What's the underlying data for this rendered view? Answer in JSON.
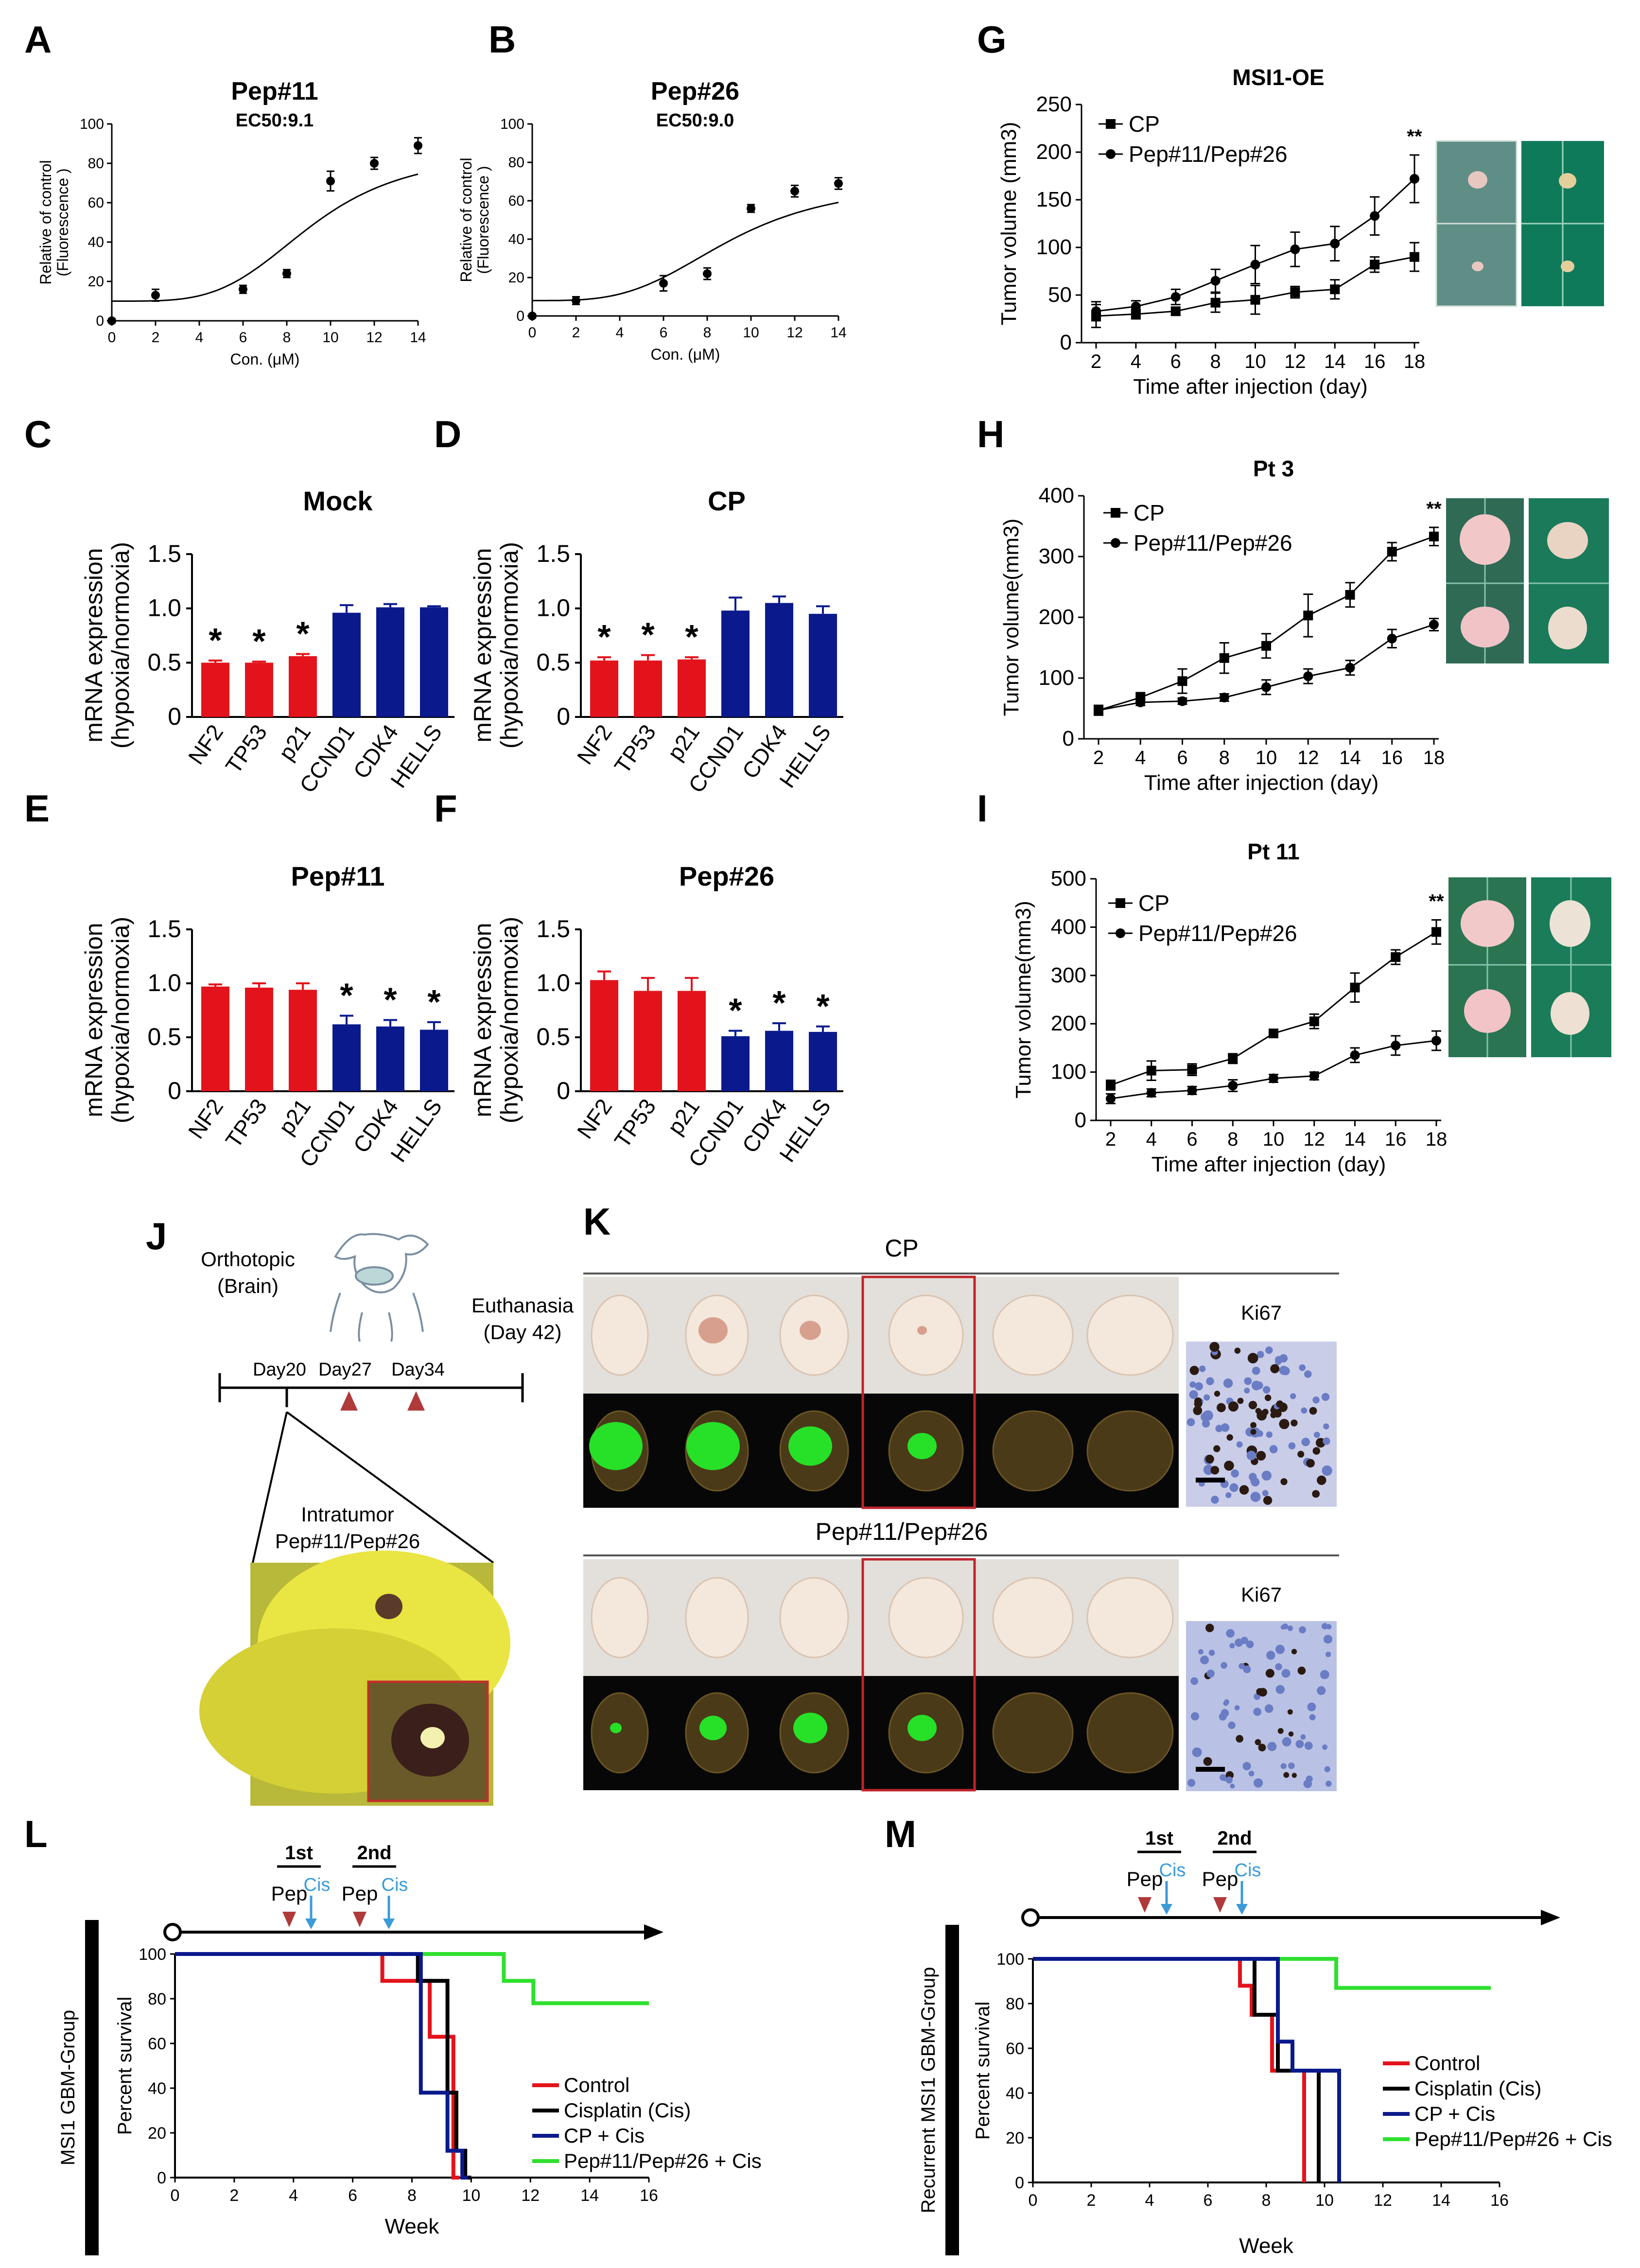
{
  "colors": {
    "red": "#e3131b",
    "blue": "#0a1a8c",
    "black": "#000000",
    "green": "#2fe02f",
    "lightblue": "#3b9bd8",
    "darkred": "#b03a3a"
  },
  "panels": {
    "A": "A",
    "B": "B",
    "C": "C",
    "D": "D",
    "E": "E",
    "F": "F",
    "G": "G",
    "H": "H",
    "I": "I",
    "J": "J",
    "K": "K",
    "L": "L",
    "M": "M"
  },
  "chart_data": [
    {
      "id": "A",
      "type": "scatter",
      "title": "Pep#11",
      "subtitle": "EC50:9.1",
      "xlabel": "Con. (μM)",
      "ylabel": [
        "Relative of control",
        "(Fluorescence )"
      ],
      "xlim": [
        0,
        14
      ],
      "ylim": [
        0,
        100
      ],
      "xticks": [
        0,
        2,
        4,
        6,
        8,
        10,
        12,
        14
      ],
      "yticks": [
        0,
        20,
        40,
        60,
        80,
        100
      ],
      "x": [
        0,
        2,
        6,
        8,
        10,
        12,
        14
      ],
      "y": [
        0,
        13,
        16,
        24,
        71,
        80,
        89
      ],
      "err": [
        1,
        3,
        2,
        2,
        5,
        3,
        4
      ],
      "fit": {
        "bottom": 10,
        "top": 86,
        "ec50": 9.1,
        "hill": 4
      }
    },
    {
      "id": "B",
      "type": "scatter",
      "title": "Pep#26",
      "subtitle": "EC50:9.0",
      "xlabel": "Con. (μM)",
      "ylabel": [
        "Relative of control",
        "(Fluorescence )"
      ],
      "xlim": [
        0,
        14
      ],
      "ylim": [
        0,
        100
      ],
      "xticks": [
        0,
        2,
        4,
        6,
        8,
        10,
        12,
        14
      ],
      "yticks": [
        0,
        20,
        40,
        60,
        80,
        100
      ],
      "x": [
        0,
        2,
        6,
        8,
        10,
        12,
        14
      ],
      "y": [
        0,
        8,
        17,
        22,
        56,
        65,
        69
      ],
      "err": [
        1,
        2,
        4,
        3,
        2,
        3,
        3
      ],
      "fit": {
        "bottom": 8,
        "top": 70,
        "ec50": 9.0,
        "hill": 3.5
      }
    },
    {
      "id": "C",
      "type": "bar",
      "title": "Mock",
      "ylabel": [
        "mRNA expression",
        "(hypoxia/normoxia)"
      ],
      "ylim": [
        0,
        1.5
      ],
      "yticks": [
        "0",
        "0.5",
        "1.0",
        "1.5"
      ],
      "categories": [
        "NF2",
        "TP53",
        "p21",
        "CCND1",
        "CDK4",
        "HELLS"
      ],
      "values": [
        0.5,
        0.5,
        0.56,
        0.96,
        1.01,
        1.01
      ],
      "err": [
        0.02,
        0.01,
        0.02,
        0.07,
        0.03,
        0.01
      ],
      "colors": [
        "red",
        "red",
        "red",
        "blue",
        "blue",
        "blue"
      ],
      "stars": [
        true,
        true,
        true,
        false,
        false,
        false
      ]
    },
    {
      "id": "D",
      "type": "bar",
      "title": "CP",
      "ylabel": [
        "mRNA expression",
        "(hypoxia/normoxia)"
      ],
      "ylim": [
        0,
        1.5
      ],
      "yticks": [
        "0",
        "0.5",
        "1.0",
        "1.5"
      ],
      "categories": [
        "NF2",
        "TP53",
        "p21",
        "CCND1",
        "CDK4",
        "HELLS"
      ],
      "values": [
        0.52,
        0.52,
        0.53,
        0.98,
        1.05,
        0.95
      ],
      "err": [
        0.03,
        0.05,
        0.02,
        0.12,
        0.06,
        0.07
      ],
      "colors": [
        "red",
        "red",
        "red",
        "blue",
        "blue",
        "blue"
      ],
      "stars": [
        true,
        true,
        true,
        false,
        false,
        false
      ]
    },
    {
      "id": "E",
      "type": "bar",
      "title": "Pep#11",
      "ylabel": [
        "mRNA expression",
        "(hypoxia/normoxia)"
      ],
      "ylim": [
        0,
        1.5
      ],
      "yticks": [
        "0",
        "0.5",
        "1.0",
        "1.5"
      ],
      "categories": [
        "NF2",
        "TP53",
        "p21",
        "CCND1",
        "CDK4",
        "HELLS"
      ],
      "values": [
        0.97,
        0.96,
        0.94,
        0.62,
        0.6,
        0.57
      ],
      "err": [
        0.02,
        0.04,
        0.06,
        0.08,
        0.06,
        0.07
      ],
      "colors": [
        "red",
        "red",
        "red",
        "blue",
        "blue",
        "blue"
      ],
      "stars": [
        false,
        false,
        false,
        true,
        true,
        true
      ]
    },
    {
      "id": "F",
      "type": "bar",
      "title": "Pep#26",
      "ylabel": [
        "mRNA expression",
        "(hypoxia/normoxia)"
      ],
      "ylim": [
        0,
        1.5
      ],
      "yticks": [
        "0",
        "0.5",
        "1.0",
        "1.5"
      ],
      "categories": [
        "NF2",
        "TP53",
        "p21",
        "CCND1",
        "CDK4",
        "HELLS"
      ],
      "values": [
        1.03,
        0.93,
        0.93,
        0.51,
        0.56,
        0.55
      ],
      "err": [
        0.08,
        0.12,
        0.12,
        0.05,
        0.07,
        0.05
      ],
      "colors": [
        "red",
        "red",
        "red",
        "blue",
        "blue",
        "blue"
      ],
      "stars": [
        false,
        false,
        false,
        true,
        true,
        true
      ]
    },
    {
      "id": "G",
      "type": "line",
      "title": "MSI1-OE",
      "xlabel": "Time after injection (day)",
      "ylabel": "Tumor volume (mm3)",
      "xlim": [
        2,
        18
      ],
      "ylim": [
        0,
        250
      ],
      "xticks": [
        2,
        4,
        6,
        8,
        10,
        12,
        14,
        16,
        18
      ],
      "yticks": [
        0,
        50,
        100,
        150,
        200,
        250
      ],
      "sig": "**",
      "series": [
        {
          "name": "CP",
          "marker": "square",
          "x": [
            2,
            4,
            6,
            8,
            10,
            12,
            14,
            16,
            18
          ],
          "y": [
            28,
            30,
            33,
            42,
            45,
            53,
            56,
            82,
            90
          ],
          "err": [
            12,
            5,
            4,
            10,
            15,
            6,
            10,
            8,
            15
          ]
        },
        {
          "name": "Pep#11/Pep#26",
          "marker": "circle",
          "x": [
            2,
            4,
            6,
            8,
            10,
            12,
            14,
            16,
            18
          ],
          "y": [
            33,
            38,
            48,
            65,
            82,
            98,
            104,
            133,
            172
          ],
          "err": [
            10,
            6,
            8,
            12,
            20,
            18,
            18,
            20,
            25
          ]
        }
      ]
    },
    {
      "id": "H",
      "type": "line",
      "title": "Pt 3",
      "xlabel": "Time after injection (day)",
      "ylabel": "Tumor volume(mm3)",
      "xlim": [
        2,
        18
      ],
      "ylim": [
        0,
        400
      ],
      "xticks": [
        2,
        4,
        6,
        8,
        10,
        12,
        14,
        16,
        18
      ],
      "yticks": [
        0,
        100,
        200,
        300,
        400
      ],
      "sig": "**",
      "series": [
        {
          "name": "CP",
          "marker": "square",
          "x": [
            2,
            4,
            6,
            8,
            10,
            12,
            14,
            16,
            18
          ],
          "y": [
            47,
            68,
            95,
            133,
            153,
            203,
            237,
            308,
            333
          ],
          "err": [
            8,
            8,
            20,
            25,
            20,
            35,
            20,
            15,
            15
          ]
        },
        {
          "name": "Pep#11/Pep#26",
          "marker": "circle",
          "x": [
            2,
            4,
            6,
            8,
            10,
            12,
            14,
            16,
            18
          ],
          "y": [
            47,
            60,
            62,
            68,
            85,
            103,
            117,
            165,
            188
          ],
          "err": [
            8,
            5,
            5,
            6,
            12,
            12,
            12,
            15,
            10
          ]
        }
      ]
    },
    {
      "id": "I",
      "type": "line",
      "title": "Pt 11",
      "xlabel": "Time after injection (day)",
      "ylabel": "Tumor volume(mm3)",
      "xlim": [
        2,
        18
      ],
      "ylim": [
        0,
        500
      ],
      "xticks": [
        2,
        4,
        6,
        8,
        10,
        12,
        14,
        16,
        18
      ],
      "yticks": [
        0,
        100,
        200,
        300,
        400,
        500
      ],
      "sig": "**",
      "series": [
        {
          "name": "CP",
          "marker": "square",
          "x": [
            2,
            4,
            6,
            8,
            10,
            12,
            14,
            16,
            18
          ],
          "y": [
            73,
            103,
            105,
            128,
            180,
            205,
            275,
            338,
            390
          ],
          "err": [
            10,
            20,
            12,
            10,
            8,
            15,
            30,
            15,
            25
          ]
        },
        {
          "name": "Pep#11/Pep#26",
          "marker": "circle",
          "x": [
            2,
            4,
            6,
            8,
            10,
            12,
            14,
            16,
            18
          ],
          "y": [
            45,
            57,
            62,
            72,
            87,
            92,
            135,
            155,
            165
          ],
          "err": [
            10,
            8,
            8,
            12,
            8,
            8,
            15,
            20,
            20
          ]
        }
      ]
    },
    {
      "id": "L",
      "type": "line",
      "subtype": "survival",
      "xlabel": "Week",
      "ylabel": "Percent survival",
      "group": "MSI1 GBM-Group",
      "xlim": [
        0,
        16
      ],
      "ylim": [
        0,
        100
      ],
      "xticks": [
        0,
        2,
        4,
        6,
        8,
        10,
        12,
        14,
        16
      ],
      "yticks": [
        0,
        20,
        40,
        60,
        80,
        100
      ],
      "series": [
        {
          "name": "Control",
          "color": "red",
          "steps": [
            [
              0,
              100
            ],
            [
              7,
              100
            ],
            [
              7,
              88
            ],
            [
              8.6,
              88
            ],
            [
              8.6,
              63
            ],
            [
              9.4,
              63
            ],
            [
              9.4,
              0
            ],
            [
              9.6,
              0
            ]
          ]
        },
        {
          "name": "Cisplatin (Cis)",
          "color": "black",
          "steps": [
            [
              0,
              100
            ],
            [
              8.2,
              100
            ],
            [
              8.2,
              88
            ],
            [
              9.2,
              88
            ],
            [
              9.2,
              38
            ],
            [
              9.5,
              38
            ],
            [
              9.5,
              12
            ],
            [
              9.8,
              12
            ],
            [
              9.8,
              0
            ],
            [
              10,
              0
            ]
          ]
        },
        {
          "name": "CP + Cis",
          "color": "blue",
          "steps": [
            [
              0,
              100
            ],
            [
              8.3,
              100
            ],
            [
              8.3,
              38
            ],
            [
              9.2,
              38
            ],
            [
              9.2,
              12
            ],
            [
              9.7,
              12
            ],
            [
              9.7,
              0
            ],
            [
              9.9,
              0
            ]
          ]
        },
        {
          "name": "Pep#11/Pep#26 + Cis",
          "color": "green",
          "steps": [
            [
              0,
              100
            ],
            [
              11.1,
              100
            ],
            [
              11.1,
              88
            ],
            [
              12.1,
              88
            ],
            [
              12.1,
              78
            ],
            [
              16,
              78
            ]
          ]
        }
      ],
      "timeline": {
        "phases": [
          "1st",
          "2nd"
        ],
        "pep": "Pep",
        "cis": "Cis"
      }
    },
    {
      "id": "M",
      "type": "line",
      "subtype": "survival",
      "xlabel": "Week",
      "ylabel": "Percent survival",
      "group": "Recurrent MSI1 GBM-Group",
      "xlim": [
        0,
        16
      ],
      "ylim": [
        0,
        100
      ],
      "xticks": [
        0,
        2,
        4,
        6,
        8,
        10,
        12,
        14,
        16
      ],
      "yticks": [
        0,
        20,
        40,
        60,
        80,
        100
      ],
      "series": [
        {
          "name": "Control",
          "color": "red",
          "steps": [
            [
              0,
              100
            ],
            [
              7.1,
              100
            ],
            [
              7.1,
              88
            ],
            [
              7.5,
              88
            ],
            [
              7.5,
              75
            ],
            [
              8.2,
              75
            ],
            [
              8.2,
              50
            ],
            [
              9.3,
              50
            ],
            [
              9.3,
              0
            ]
          ]
        },
        {
          "name": "Cisplatin (Cis)",
          "color": "black",
          "steps": [
            [
              0,
              100
            ],
            [
              7.6,
              100
            ],
            [
              7.6,
              75
            ],
            [
              8.4,
              75
            ],
            [
              8.4,
              50
            ],
            [
              9.8,
              50
            ],
            [
              9.8,
              0
            ]
          ]
        },
        {
          "name": "CP + Cis",
          "color": "blue",
          "steps": [
            [
              0,
              100
            ],
            [
              8.4,
              100
            ],
            [
              8.4,
              63
            ],
            [
              8.9,
              63
            ],
            [
              8.9,
              50
            ],
            [
              10.5,
              50
            ],
            [
              10.5,
              0
            ]
          ]
        },
        {
          "name": "Pep#11/Pep#26 + Cis",
          "color": "green",
          "steps": [
            [
              0,
              100
            ],
            [
              10.4,
              100
            ],
            [
              10.4,
              87
            ],
            [
              15.7,
              87
            ]
          ]
        }
      ],
      "timeline": {
        "phases": [
          "1st",
          "2nd"
        ],
        "pep": "Pep",
        "cis": "Cis"
      }
    }
  ],
  "J": {
    "orthotopic": [
      "Orthotopic",
      "(Brain)"
    ],
    "euthanasia": [
      "Euthanasia",
      "(Day 42)"
    ],
    "days": [
      "Day20",
      "Day27",
      "Day34"
    ],
    "inj": [
      "Intratumor",
      "Pep#11/Pep#26"
    ]
  },
  "K": {
    "top_label": "CP",
    "bottom_label": "Pep#11/Pep#26",
    "ki67": "Ki67"
  }
}
